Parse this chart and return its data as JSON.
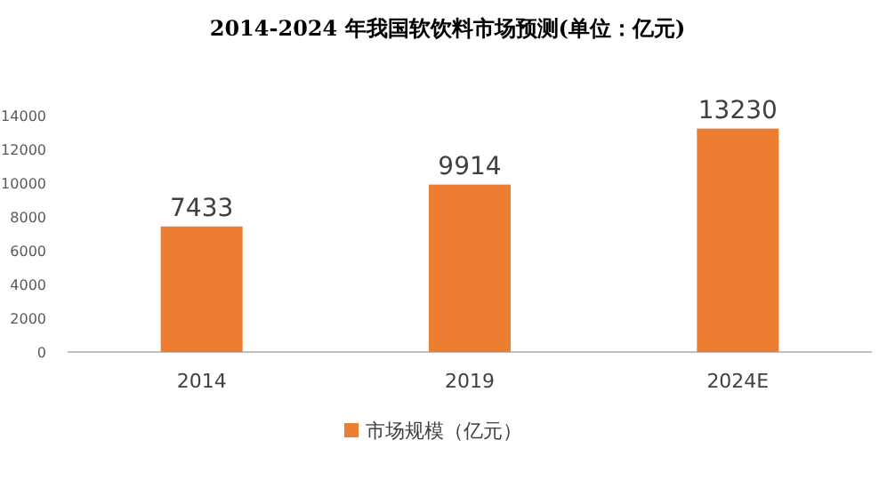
{
  "chart_data": {
    "type": "bar",
    "title": "2014-2024 年我国软饮料市场预测(单位：亿元)",
    "categories": [
      "2014",
      "2019",
      "2024E"
    ],
    "series": [
      {
        "name": "市场规模（亿元）",
        "color": "#ed7d31",
        "values": [
          7433,
          9914,
          13230
        ]
      }
    ],
    "ylim": [
      0,
      14000
    ],
    "yticks": [
      0,
      2000,
      4000,
      6000,
      8000,
      10000,
      12000,
      14000
    ],
    "data_labels": true,
    "legend": "bottom",
    "grid": false
  }
}
